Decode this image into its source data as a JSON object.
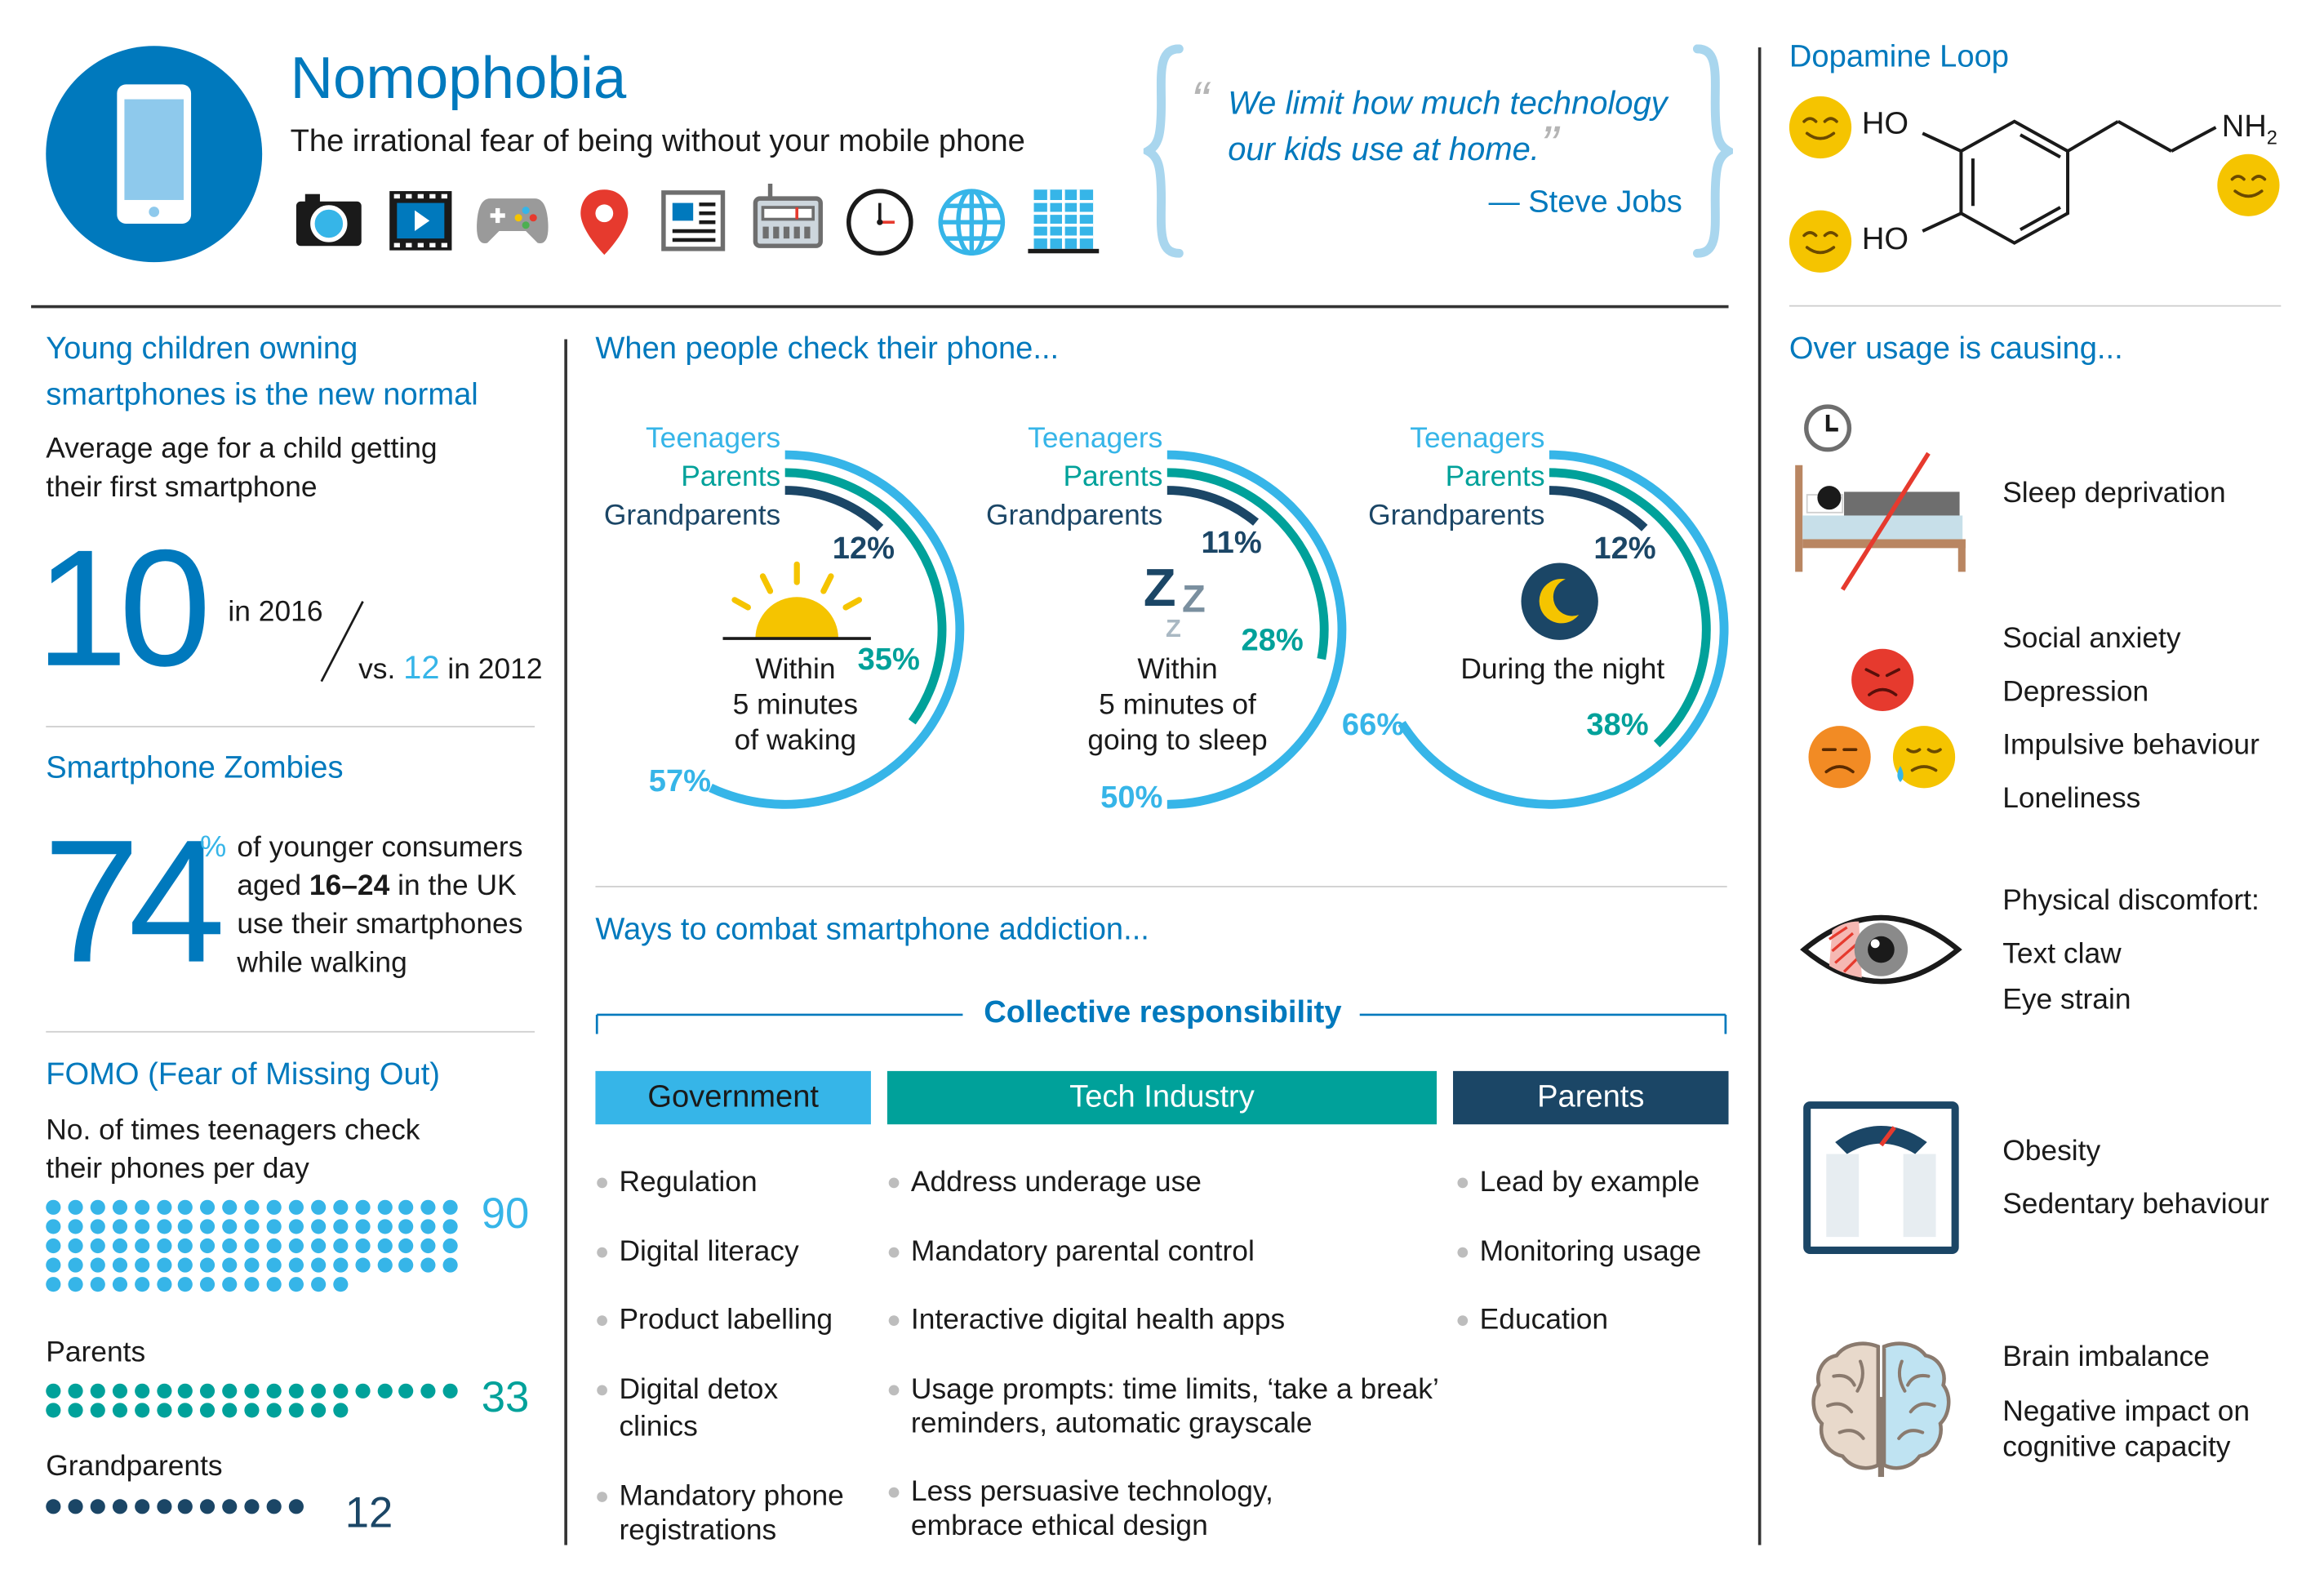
{
  "header": {
    "title": "Nomophobia",
    "subtitle": "The irrational fear of being without your mobile phone",
    "icons": [
      "phone-icon",
      "camera-icon",
      "film-icon",
      "gamepad-icon",
      "map-pin-icon",
      "newspaper-icon",
      "radio-icon",
      "clock-icon",
      "globe-icon",
      "building-icon"
    ]
  },
  "quote": {
    "line1": "We limit how much technology",
    "line2": "our kids use at home.",
    "author": "— Steve Jobs"
  },
  "dopamine": {
    "title": "Dopamine Loop",
    "ho1": "HO",
    "ho2": "HO",
    "nh2": "NH",
    "nh2_sub": "2"
  },
  "children": {
    "title_line1": "Young children owning",
    "title_line2": "smartphones is the new normal",
    "desc_line1": "Average age for a child getting",
    "desc_line2": "their first smartphone",
    "big_number": "10",
    "year_2016": "in 2016",
    "vs": "vs.",
    "age_2012": "12",
    "year_2012": "in 2012"
  },
  "zombies": {
    "title": "Smartphone Zombies",
    "big_number": "74",
    "pct_sign": "%",
    "line1": "of younger consumers",
    "line2_pre": "aged ",
    "line2_bold": "16–24",
    "line2_post": " in the UK",
    "line3": "use their smartphones",
    "line4": "while walking"
  },
  "fomo": {
    "title": "FOMO (Fear of Missing Out)",
    "desc_line1": "No. of times teenagers check",
    "desc_line2": "their phones per day",
    "teen_value": "90",
    "parents_label": "Parents",
    "parents_value": "33",
    "grand_label": "Grandparents",
    "grand_value": "12"
  },
  "check": {
    "title": "When people check their phone...",
    "legend": [
      "Teenagers",
      "Parents",
      "Grandparents"
    ],
    "charts": [
      {
        "caption_lines": [
          "Within",
          "5 minutes",
          "of waking"
        ],
        "teen": "57%",
        "parents": "35%",
        "grand": "12%"
      },
      {
        "caption_lines": [
          "Within",
          "5 minutes of",
          "going to sleep"
        ],
        "teen": "50%",
        "parents": "28%",
        "grand": "11%"
      },
      {
        "caption_lines": [
          "During the night"
        ],
        "teen": "66%",
        "parents": "38%",
        "grand": "12%"
      }
    ]
  },
  "chart_data": [
    {
      "type": "pie",
      "title": "Within 5 minutes of waking",
      "categories": [
        "Teenagers",
        "Parents",
        "Grandparents"
      ],
      "values": [
        57,
        35,
        12
      ]
    },
    {
      "type": "pie",
      "title": "Within 5 minutes of going to sleep",
      "categories": [
        "Teenagers",
        "Parents",
        "Grandparents"
      ],
      "values": [
        50,
        28,
        11
      ]
    },
    {
      "type": "pie",
      "title": "During the night",
      "categories": [
        "Teenagers",
        "Parents",
        "Grandparents"
      ],
      "values": [
        66,
        38,
        12
      ]
    },
    {
      "type": "bar",
      "title": "No. of times teenagers check their phones per day",
      "categories": [
        "Teenagers",
        "Parents",
        "Grandparents"
      ],
      "values": [
        90,
        33,
        12
      ]
    }
  ],
  "combat": {
    "title": "Ways to combat smartphone addiction...",
    "collective": "Collective responsibility",
    "gov_title": "Government",
    "tech_title": "Tech Industry",
    "parents_title": "Parents",
    "gov": [
      "Regulation",
      "Digital literacy",
      "Product labelling",
      "Digital detox",
      "clinics",
      "Mandatory phone",
      "registrations"
    ],
    "tech": [
      "Address underage use",
      "Mandatory parental control",
      "Interactive digital health apps",
      "Usage prompts: time limits, ‘take a break’",
      "reminders, automatic grayscale",
      "Less persuasive technology,",
      "embrace ethical design"
    ],
    "parents": [
      "Lead by example",
      "Monitoring usage",
      "Education"
    ]
  },
  "overuse": {
    "title": "Over usage is causing...",
    "sleep": "Sleep deprivation",
    "social": [
      "Social anxiety",
      "Depression",
      "Impulsive behaviour",
      "Loneliness"
    ],
    "physical": [
      "Physical discomfort:",
      "Text claw",
      "Eye strain"
    ],
    "obesity": [
      "Obesity",
      "Sedentary behaviour"
    ],
    "brain": [
      "Brain imbalance",
      "Negative impact on",
      "cognitive capacity"
    ]
  },
  "colors": {
    "blue": "#0079bd",
    "lightblue": "#36b5e8",
    "teal": "#00a19a",
    "navy": "#1b4666",
    "yellow": "#f5c400"
  }
}
